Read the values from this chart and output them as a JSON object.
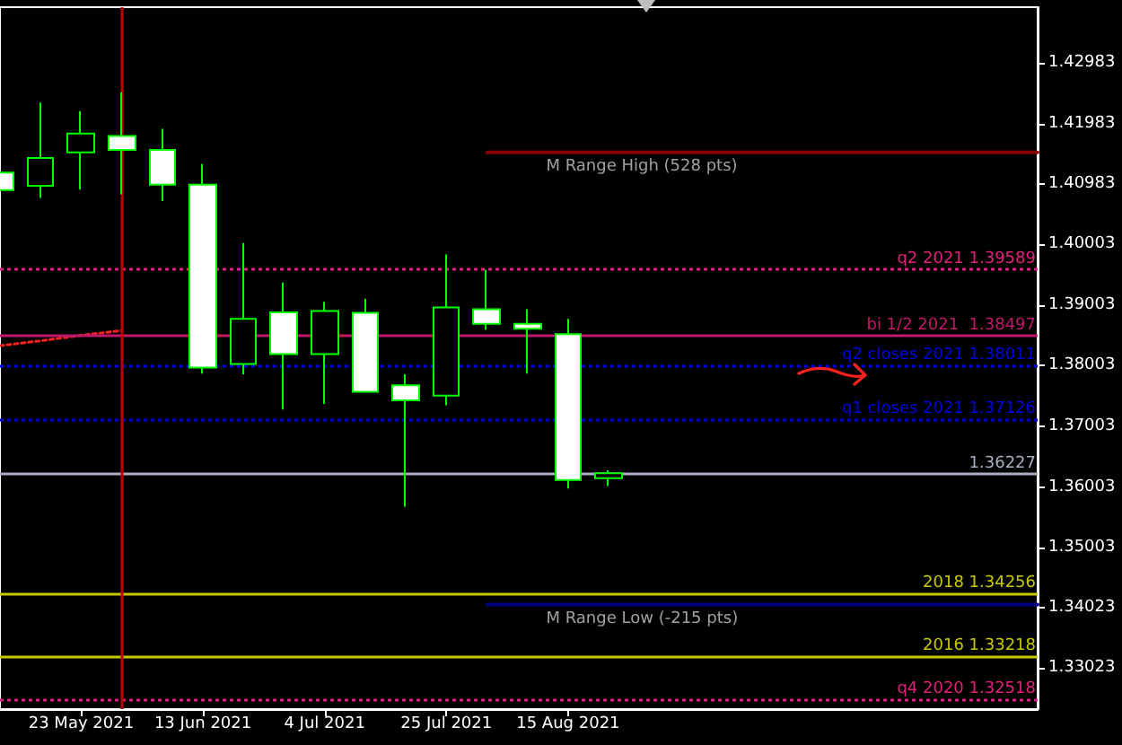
{
  "chart_data": {
    "type": "candlestick",
    "x": [
      "2021-05-09",
      "2021-05-16",
      "2021-05-23",
      "2021-05-30",
      "2021-06-06",
      "2021-06-13",
      "2021-06-20",
      "2021-06-27",
      "2021-07-04",
      "2021-07-11",
      "2021-07-18",
      "2021-07-25",
      "2021-08-01",
      "2021-08-08",
      "2021-08-15",
      "2021-08-22"
    ],
    "ohlc": [
      [
        1.4118,
        1.4118,
        1.4089,
        1.4089
      ],
      [
        1.4096,
        1.4233,
        1.4076,
        1.4142
      ],
      [
        1.4151,
        1.4219,
        1.409,
        1.4182
      ],
      [
        1.4178,
        1.425,
        1.4082,
        1.4155
      ],
      [
        1.4155,
        1.419,
        1.4071,
        1.4098
      ],
      [
        1.4098,
        1.4132,
        1.3787,
        1.3797
      ],
      [
        1.3803,
        1.4002,
        1.3786,
        1.3877
      ],
      [
        1.3888,
        1.3937,
        1.3728,
        1.3819
      ],
      [
        1.3819,
        1.3905,
        1.3737,
        1.389
      ],
      [
        1.3887,
        1.391,
        1.3757,
        1.3757
      ],
      [
        1.3768,
        1.3786,
        1.3568,
        1.3743
      ],
      [
        1.3751,
        1.3983,
        1.3735,
        1.3896
      ],
      [
        1.3893,
        1.3958,
        1.3859,
        1.3869
      ],
      [
        1.3869,
        1.3893,
        1.3787,
        1.3861
      ],
      [
        1.3852,
        1.3877,
        1.3598,
        1.3612
      ],
      [
        1.3615,
        1.3628,
        1.3602,
        1.3623
      ]
    ],
    "color": "#00ff00",
    "series": [
      {
        "type": "line",
        "color": "#ff2020",
        "line_style": "dotted",
        "x": [
          "2021-05-09",
          "2021-05-16",
          "2021-05-23",
          "2021-05-30"
        ],
        "values": [
          1.3833,
          1.3841,
          1.385,
          1.3858
        ]
      },
      {
        "type": "line",
        "name": "M Range High (528 pts)",
        "color": "#8b0000",
        "line_style": "solid",
        "x": [
          "2021-08-01",
          "2021-11-04"
        ],
        "values": [
          1.4151,
          1.4151
        ]
      },
      {
        "type": "line",
        "name": "M Range Low (-215 pts)",
        "color": "#000080",
        "line_style": "solid",
        "x": [
          "2021-08-01",
          "2021-11-04"
        ],
        "values": [
          1.3407,
          1.3407
        ]
      }
    ],
    "xlim": [
      "2021-05-09",
      "2021-11-04"
    ],
    "xticks": [
      {
        "value": "2021-05-23",
        "label": "23 May 2021"
      },
      {
        "value": "2021-06-13",
        "label": "13 Jun 2021"
      },
      {
        "value": "2021-07-04",
        "label": "4 Jul 2021"
      },
      {
        "value": "2021-07-25",
        "label": "25 Jul 2021"
      },
      {
        "value": "2021-08-15",
        "label": "15 Aug 2021"
      }
    ],
    "ylim": [
      1.3235,
      1.439
    ],
    "yticks": [
      1.33023,
      1.34023,
      1.35003,
      1.36003,
      1.37003,
      1.38003,
      1.39003,
      1.40003,
      1.40983,
      1.41983,
      1.42983
    ],
    "ref_lines": [
      {
        "axis": "y",
        "value": 1.39589,
        "label": "q2 2021 1.39589",
        "color": "#e0207a",
        "line_style": "dotted"
      },
      {
        "axis": "y",
        "value": 1.38497,
        "label": "bi 1/2 2021  1.38497",
        "color": "#c0186a",
        "line_style": "solid"
      },
      {
        "axis": "y",
        "value": 1.38011,
        "label": "q2 closes 2021 1.38011",
        "color": "#0000e0",
        "line_style": "dotted"
      },
      {
        "axis": "y",
        "value": 1.37126,
        "label": "q1 closes 2021 1.37126",
        "color": "#0000e0",
        "line_style": "dotted"
      },
      {
        "axis": "y",
        "value": 1.36227,
        "label": "1.36227",
        "color": "#a8b0c0",
        "line_style": "solid"
      },
      {
        "axis": "y",
        "value": 1.34256,
        "label": "2018 1.34256",
        "color": "#c8c800",
        "line_style": "solid"
      },
      {
        "axis": "y",
        "value": 1.33218,
        "label": "2016 1.33218",
        "color": "#c8c800",
        "line_style": "solid"
      },
      {
        "axis": "y",
        "value": 1.32518,
        "label": "q4 2020 1.32518",
        "color": "#e0207a",
        "line_style": "dotted"
      },
      {
        "axis": "x",
        "value": "2021-05-30",
        "color": "#c00000",
        "line_style": "solid"
      }
    ],
    "grid": false,
    "legend": false,
    "marker": "none"
  }
}
